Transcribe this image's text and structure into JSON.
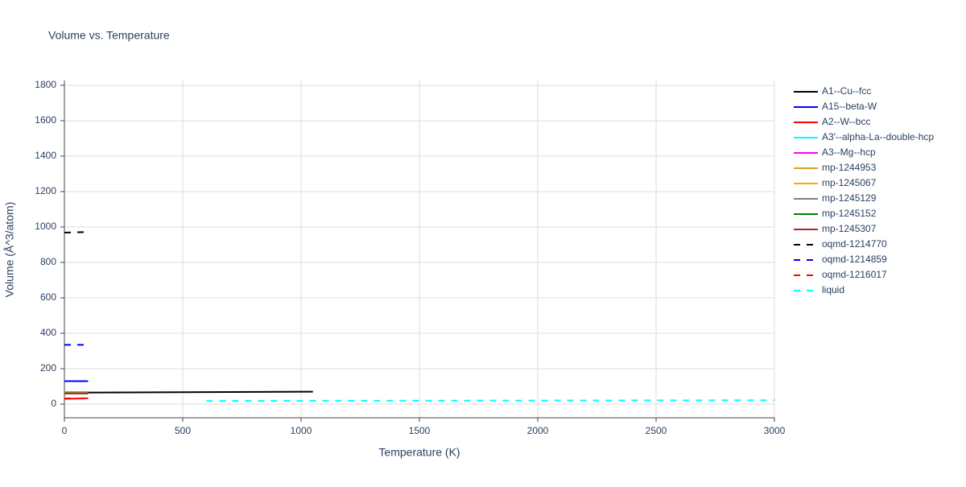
{
  "chart_data": {
    "type": "line",
    "title": "Volume vs. Temperature",
    "x_label": "Temperature (K)",
    "y_label": "Volume (Å^3/atom)",
    "xlim": [
      0,
      3000
    ],
    "ylim": [
      -77,
      1827
    ],
    "xticks": [
      0,
      500,
      1000,
      1500,
      2000,
      2500,
      3000
    ],
    "yticks": [
      0,
      200,
      400,
      600,
      800,
      1000,
      1200,
      1400,
      1600,
      1800
    ],
    "grid": true,
    "legend": "right",
    "series": [
      {
        "name": "A1--Cu--fcc",
        "color": "#000000",
        "dash": false,
        "x": [
          0,
          1050
        ],
        "values": [
          65,
          70
        ]
      },
      {
        "name": "A15--beta-W",
        "color": "#0000ff",
        "dash": false,
        "x": [
          0,
          100
        ],
        "values": [
          130,
          130
        ]
      },
      {
        "name": "A2--W--bcc",
        "color": "#ff0000",
        "dash": false,
        "x": [
          0,
          100
        ],
        "values": [
          30,
          33
        ]
      },
      {
        "name": "A3'--alpha-La--double-hcp",
        "color": "#00ffff",
        "dash": false,
        "x": [
          0,
          100
        ],
        "values": [
          68,
          68
        ]
      },
      {
        "name": "A3--Mg--hcp",
        "color": "#ff00ff",
        "dash": false,
        "x": [
          0,
          100
        ],
        "values": [
          66,
          66
        ]
      },
      {
        "name": "mp-1244953",
        "color": "#daa520",
        "dash": false,
        "x": [
          0,
          100
        ],
        "values": [
          64,
          64
        ]
      },
      {
        "name": "mp-1245067",
        "color": "#ffa500",
        "dash": false,
        "x": [
          0,
          100
        ],
        "values": [
          63,
          63
        ]
      },
      {
        "name": "mp-1245129",
        "color": "#808080",
        "dash": false,
        "x": [
          0,
          100
        ],
        "values": [
          62,
          62
        ]
      },
      {
        "name": "mp-1245152",
        "color": "#008000",
        "dash": false,
        "x": [
          0,
          100
        ],
        "values": [
          61,
          61
        ]
      },
      {
        "name": "mp-1245307",
        "color": "#a52a2a",
        "dash": false,
        "x": [
          0,
          100
        ],
        "values": [
          60,
          60
        ]
      },
      {
        "name": "oqmd-1214770",
        "color": "#000000",
        "dash": true,
        "x": [
          0,
          100
        ],
        "values": [
          968,
          972
        ]
      },
      {
        "name": "oqmd-1214859",
        "color": "#0000ff",
        "dash": true,
        "x": [
          0,
          100
        ],
        "values": [
          335,
          335
        ]
      },
      {
        "name": "oqmd-1216017",
        "color": "#ff0000",
        "dash": true,
        "x": [
          0,
          100
        ],
        "values": [
          32,
          32
        ]
      },
      {
        "name": "liquid",
        "color": "#00ffff",
        "dash": true,
        "x": [
          600,
          3000
        ],
        "values": [
          18,
          22
        ]
      }
    ]
  }
}
